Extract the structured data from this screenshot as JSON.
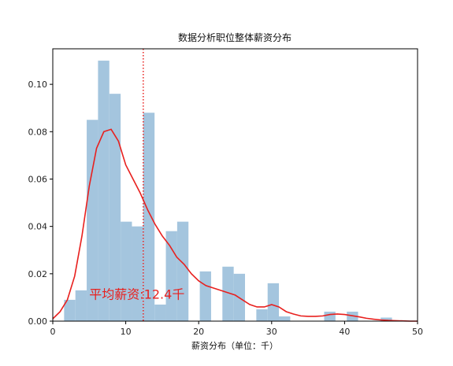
{
  "chart_data": {
    "type": "bar",
    "title": "数据分析职位整体薪资分布",
    "xlabel": "薪资分布（单位：千）",
    "ylabel": "",
    "xlim": [
      0,
      50
    ],
    "ylim": [
      0,
      0.115
    ],
    "grid": false,
    "legend": "none",
    "x_ticks": [
      0,
      10,
      20,
      30,
      40,
      50
    ],
    "x_tick_labels": [
      "0",
      "10",
      "20",
      "30",
      "40",
      "50"
    ],
    "y_ticks": [
      0,
      0.02,
      0.04,
      0.06,
      0.08,
      0.1
    ],
    "y_tick_labels": [
      "0.00",
      "0.02",
      "0.04",
      "0.06",
      "0.08",
      "0.10"
    ],
    "histogram": {
      "color": "#a4c5de",
      "bin_width": 1.55,
      "bins": [
        {
          "x0": 0.0,
          "height": 0.0
        },
        {
          "x0": 1.55,
          "height": 0.009
        },
        {
          "x0": 3.1,
          "height": 0.013
        },
        {
          "x0": 4.65,
          "height": 0.085
        },
        {
          "x0": 6.2,
          "height": 0.11
        },
        {
          "x0": 7.75,
          "height": 0.096
        },
        {
          "x0": 9.3,
          "height": 0.042
        },
        {
          "x0": 10.85,
          "height": 0.04
        },
        {
          "x0": 12.4,
          "height": 0.088
        },
        {
          "x0": 13.95,
          "height": 0.007
        },
        {
          "x0": 15.5,
          "height": 0.038
        },
        {
          "x0": 17.05,
          "height": 0.042
        },
        {
          "x0": 18.6,
          "height": 0.0
        },
        {
          "x0": 20.15,
          "height": 0.021
        },
        {
          "x0": 21.7,
          "height": 0.0
        },
        {
          "x0": 23.25,
          "height": 0.023
        },
        {
          "x0": 24.8,
          "height": 0.02
        },
        {
          "x0": 26.35,
          "height": 0.0
        },
        {
          "x0": 27.9,
          "height": 0.005
        },
        {
          "x0": 29.45,
          "height": 0.016
        },
        {
          "x0": 31.0,
          "height": 0.002
        },
        {
          "x0": 32.55,
          "height": 0.0
        },
        {
          "x0": 34.1,
          "height": 0.0
        },
        {
          "x0": 35.65,
          "height": 0.0
        },
        {
          "x0": 37.2,
          "height": 0.004
        },
        {
          "x0": 38.75,
          "height": 0.0
        },
        {
          "x0": 40.3,
          "height": 0.004
        },
        {
          "x0": 41.85,
          "height": 0.0
        },
        {
          "x0": 43.4,
          "height": 0.0
        },
        {
          "x0": 44.95,
          "height": 0.0015
        }
      ]
    },
    "kde": {
      "color": "#e8201e",
      "points": [
        [
          0,
          0.001
        ],
        [
          1,
          0.004
        ],
        [
          2,
          0.009
        ],
        [
          3,
          0.019
        ],
        [
          4,
          0.036
        ],
        [
          5,
          0.057
        ],
        [
          6,
          0.073
        ],
        [
          7,
          0.08
        ],
        [
          8,
          0.081
        ],
        [
          9,
          0.076
        ],
        [
          10,
          0.066
        ],
        [
          11,
          0.06
        ],
        [
          12,
          0.054
        ],
        [
          13,
          0.047
        ],
        [
          14,
          0.041
        ],
        [
          15,
          0.036
        ],
        [
          16,
          0.032
        ],
        [
          17,
          0.027
        ],
        [
          18,
          0.024
        ],
        [
          19,
          0.02
        ],
        [
          20,
          0.017
        ],
        [
          21,
          0.015
        ],
        [
          22,
          0.014
        ],
        [
          23,
          0.013
        ],
        [
          24,
          0.012
        ],
        [
          25,
          0.011
        ],
        [
          26,
          0.009
        ],
        [
          27,
          0.007
        ],
        [
          28,
          0.006
        ],
        [
          29,
          0.006
        ],
        [
          30,
          0.007
        ],
        [
          31,
          0.006
        ],
        [
          32,
          0.004
        ],
        [
          33,
          0.003
        ],
        [
          34,
          0.0022
        ],
        [
          35,
          0.002
        ],
        [
          36,
          0.002
        ],
        [
          37,
          0.0022
        ],
        [
          38,
          0.0028
        ],
        [
          39,
          0.003
        ],
        [
          40,
          0.0028
        ],
        [
          41,
          0.0023
        ],
        [
          42,
          0.0018
        ],
        [
          43,
          0.0012
        ],
        [
          44,
          0.0008
        ],
        [
          45,
          0.0005
        ],
        [
          46,
          0.0003
        ],
        [
          47,
          0.0002
        ],
        [
          48,
          0.0001
        ],
        [
          49,
          0.0
        ],
        [
          50,
          0.0
        ]
      ]
    },
    "mean_line": {
      "x": 12.4,
      "color": "#e8201e",
      "style": "dotted"
    },
    "annotation": {
      "text": "平均薪资:12.4千",
      "x": 5.0,
      "y": 0.0095,
      "color": "#e8201e"
    }
  }
}
